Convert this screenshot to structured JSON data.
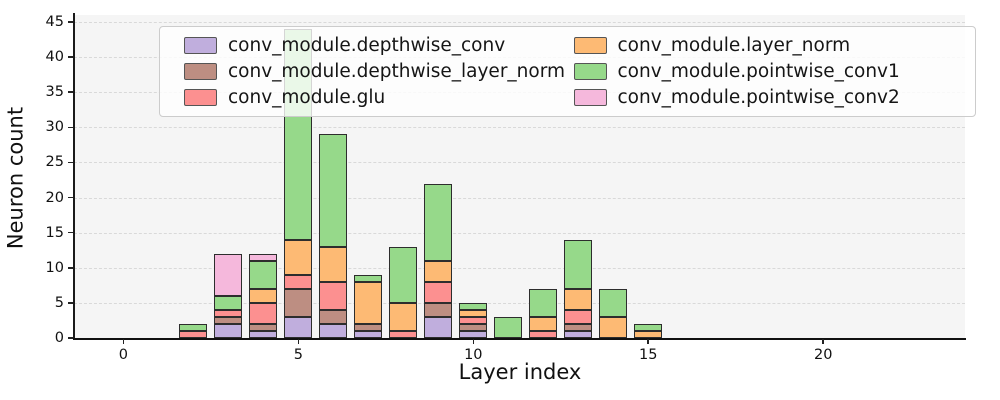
{
  "figure": {
    "background": "#ffffff"
  },
  "chart_data": {
    "type": "bar",
    "stacked": true,
    "title": "",
    "xlabel": "Layer index",
    "ylabel": "Neuron count",
    "x": [
      2,
      3,
      4,
      5,
      6,
      7,
      8,
      9,
      10,
      11,
      12,
      13,
      14,
      15
    ],
    "series": [
      {
        "name": "conv_module.depthwise_conv",
        "color": "#c0aedd",
        "values": [
          0,
          2,
          1,
          3,
          2,
          1,
          0,
          3,
          1,
          0,
          0,
          1,
          0,
          0
        ]
      },
      {
        "name": "conv_module.depthwise_layer_norm",
        "color": "#bd8e82",
        "values": [
          0,
          1,
          1,
          4,
          2,
          1,
          0,
          2,
          1,
          0,
          0,
          1,
          0,
          0
        ]
      },
      {
        "name": "conv_module.glu",
        "color": "#fc9090",
        "values": [
          1,
          1,
          3,
          2,
          4,
          0,
          1,
          3,
          1,
          0,
          1,
          2,
          0,
          0
        ]
      },
      {
        "name": "conv_module.layer_norm",
        "color": "#fdba74",
        "values": [
          0,
          0,
          2,
          5,
          5,
          6,
          4,
          3,
          1,
          0,
          2,
          3,
          3,
          1
        ]
      },
      {
        "name": "conv_module.pointwise_conv1",
        "color": "#96d98a",
        "values": [
          1,
          2,
          4,
          30,
          16,
          1,
          8,
          11,
          1,
          3,
          4,
          7,
          4,
          1
        ]
      },
      {
        "name": "conv_module.pointwise_conv2",
        "color": "#f5b8dc",
        "values": [
          0,
          6,
          1,
          0,
          0,
          0,
          0,
          0,
          0,
          0,
          0,
          0,
          0,
          0
        ]
      }
    ],
    "bar_totals": [
      2,
      12,
      12,
      44,
      29,
      9,
      13,
      22,
      5,
      3,
      7,
      14,
      7,
      2
    ],
    "xticks": [
      0,
      5,
      10,
      15,
      20
    ],
    "yticks": [
      0,
      5,
      10,
      15,
      20,
      25,
      30,
      35,
      40,
      45
    ],
    "xlim": [
      -1.41,
      24.05
    ],
    "ylim": [
      0,
      46
    ],
    "bar_width": 0.8,
    "grid": "horizontal dashed, on",
    "legend_position": "upper center, 2 columns",
    "style": {
      "plot_bg": "#f5f5f5",
      "grid_color": "#d9d9d9",
      "bar_edge": "#2d2d2d",
      "spine": "#1a1a1a",
      "legend_bg": "rgba(255,255,255,0.8)",
      "legend_border": "#cccccc",
      "text": "#111111"
    }
  }
}
